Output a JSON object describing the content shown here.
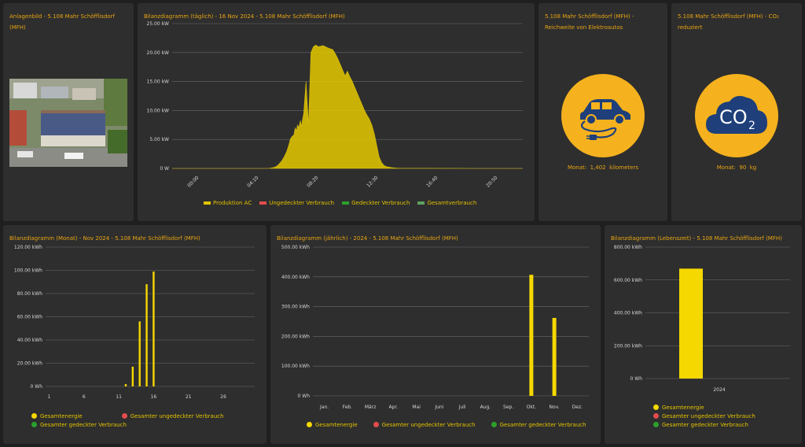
{
  "colors": {
    "production": "#e0c400",
    "uncovered": "#e34c4c",
    "covered": "#2ca02c",
    "total": "#5da15d",
    "title": "#e8a512",
    "icon_circle": "#f5b21e",
    "icon_dark": "#1e3f7a"
  },
  "panels": {
    "image": {
      "title": "Anlagenbild - 5.108 Mahr Schöfflisdorf (MFH)"
    },
    "daily": {
      "title": "Bilanzdiagramm (täglich) - 16 Nov 2024 - 5.108 Mahr Schöfflisdorf (MFH)"
    },
    "ev": {
      "title": "5.108 Mahr Schöfflisdorf (MFH) - Reichweite von Elektroautos",
      "stat_label": "Monat:",
      "stat_value": "1,402",
      "stat_unit": "kilometers",
      "icon": "electric-car-icon"
    },
    "co2": {
      "title": "5.108 Mahr Schöfflisdorf (MFH) - CO₂ reduziert",
      "stat_label": "Monat:",
      "stat_value": "90",
      "stat_unit": "kg",
      "icon": "co2-cloud-icon",
      "icon_text_main": "CO",
      "icon_text_sub": "2"
    },
    "monthly": {
      "title": "Bilanzdiagramm (Monat) - Nov 2024 - 5.108 Mahr Schöfflisdorf (MFH)"
    },
    "yearly": {
      "title": "Bilanzdiagramm (jährlich) - 2024 - 5.108 Mahr Schöfflisdorf (MFH)"
    },
    "lifetime": {
      "title": "Bilanzdiagramm (Lebenszeit) - 5.108 Mahr Schöfflisdorf (MFH)"
    }
  },
  "legends": {
    "daily": [
      "Produktion AC",
      "Ungedeckter Verbrauch",
      "Gedeckter Verbrauch",
      "Gesamtverbrauch"
    ],
    "energy": [
      "Gesamtenergie",
      "Gesamter ungedeckter Verbrauch",
      "Gesamter gedeckter Verbrauch"
    ]
  },
  "chart_data": [
    {
      "id": "daily",
      "type": "area",
      "ylim": [
        0,
        25
      ],
      "yticks": [
        "0 W",
        "5.00 kW",
        "10.00 kW",
        "15.00 kW",
        "20.00 kW",
        "25.00 kW"
      ],
      "xticks": [
        "00:00",
        "04:10",
        "08:20",
        "12:30",
        "16:40",
        "20:50"
      ],
      "series": [
        {
          "name": "Produktion AC",
          "x": [
            0,
            400,
            405,
            410,
            420,
            430,
            440,
            450,
            460,
            470,
            475,
            480,
            485,
            490,
            500,
            505,
            510,
            515,
            520,
            525,
            527,
            530,
            540,
            550,
            560,
            570,
            580,
            590,
            600,
            620,
            640,
            660,
            670,
            680,
            690,
            700,
            710,
            720,
            730,
            740,
            750,
            760,
            770,
            780,
            790,
            800,
            810,
            820,
            830,
            840,
            850,
            860,
            870,
            880,
            900,
            910,
            920,
            930,
            940,
            945,
            950,
            955,
            960,
            970,
            980,
            990,
            1000,
            1020,
            1040,
            1250,
            1440
          ],
          "values": [
            0,
            0,
            0.05,
            0.1,
            0.2,
            0.4,
            0.8,
            1.3,
            2.0,
            2.9,
            3.5,
            4.2,
            5.0,
            5.4,
            5.8,
            7.0,
            6.5,
            7.5,
            7.0,
            8.0,
            8.2,
            7.2,
            9.5,
            15.0,
            7.5,
            20.0,
            21.0,
            21.3,
            21.0,
            21.2,
            20.8,
            20.5,
            19.8,
            19.0,
            18.0,
            17.0,
            16.0,
            16.8,
            15.8,
            15.0,
            14.0,
            13.0,
            12.0,
            11.0,
            10.0,
            9.2,
            8.5,
            7.5,
            6.0,
            4.0,
            2.0,
            1.0,
            0.5,
            0.3,
            0.15,
            0.1,
            0.05,
            0.03,
            0.02,
            0.02,
            0.01,
            0.01,
            0.01,
            0.01,
            0.01,
            0.01,
            0.01,
            0.01,
            0.01,
            0,
            0
          ]
        }
      ]
    },
    {
      "id": "monthly",
      "type": "bar",
      "ylim": [
        0,
        120
      ],
      "yticks": [
        "0 Wh",
        "20.00 kWh",
        "40.00 kWh",
        "60.00 kWh",
        "80.00 kWh",
        "100.00 kWh",
        "120.00 kWh"
      ],
      "xticks": [
        "1",
        "6",
        "11",
        "16",
        "21",
        "26"
      ],
      "categories": [
        "1",
        "2",
        "3",
        "4",
        "5",
        "6",
        "7",
        "8",
        "9",
        "10",
        "11",
        "12",
        "13",
        "14",
        "15",
        "16",
        "17",
        "18",
        "19",
        "20",
        "21",
        "22",
        "23",
        "24",
        "25",
        "26",
        "27",
        "28",
        "29",
        "30"
      ],
      "series": [
        {
          "name": "Gesamtenergie",
          "values": [
            0,
            0,
            0,
            0,
            0,
            0,
            0,
            0,
            0,
            0,
            0,
            2,
            17,
            56,
            88,
            99,
            0,
            0,
            0,
            0,
            0,
            0,
            0,
            0,
            0,
            0,
            0,
            0,
            0,
            0
          ]
        }
      ]
    },
    {
      "id": "yearly",
      "type": "bar",
      "ylim": [
        0,
        500
      ],
      "yticks": [
        "0 Wh",
        "100.00 kWh",
        "200.00 kWh",
        "300.00 kWh",
        "400.00 kWh",
        "500.00 kWh"
      ],
      "categories": [
        "Jan.",
        "Feb.",
        "März",
        "Apr.",
        "Mai",
        "Juni",
        "Juli",
        "Aug.",
        "Sep.",
        "Okt.",
        "Nov.",
        "Dez."
      ],
      "series": [
        {
          "name": "Gesamtenergie",
          "values": [
            0,
            0,
            0,
            0,
            0,
            0,
            0,
            0,
            0,
            407,
            262,
            0
          ]
        }
      ]
    },
    {
      "id": "lifetime",
      "type": "bar",
      "ylim": [
        0,
        800
      ],
      "yticks": [
        "0 Wh",
        "200.00 kWh",
        "400.00 kWh",
        "600.00 kWh",
        "800.00 kWh"
      ],
      "categories": [
        "2024"
      ],
      "series": [
        {
          "name": "Gesamtenergie",
          "values": [
            669
          ]
        }
      ]
    }
  ]
}
